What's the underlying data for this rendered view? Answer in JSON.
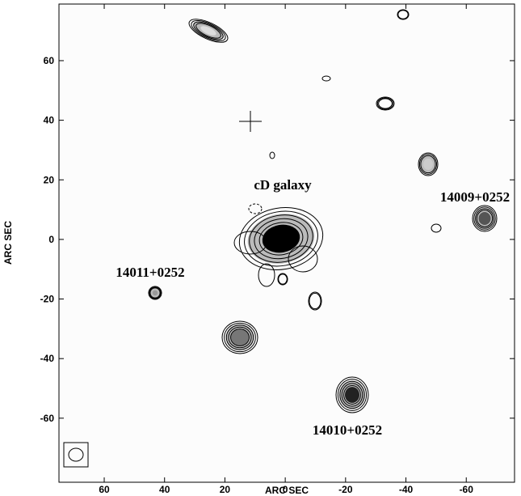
{
  "chart_data": {
    "type": "contour",
    "xlabel": "ARC SEC",
    "ylabel": "ARC SEC",
    "xlim": [
      75,
      -76
    ],
    "ylim": [
      -81.5,
      79
    ],
    "xticks": [
      60,
      40,
      20,
      0,
      -20,
      -40,
      -60
    ],
    "yticks": [
      60,
      40,
      20,
      0,
      -20,
      -40,
      -60
    ],
    "annotations": [
      "cD galaxy",
      "14009+0252",
      "14011+0252",
      "14010+0252"
    ]
  }
}
